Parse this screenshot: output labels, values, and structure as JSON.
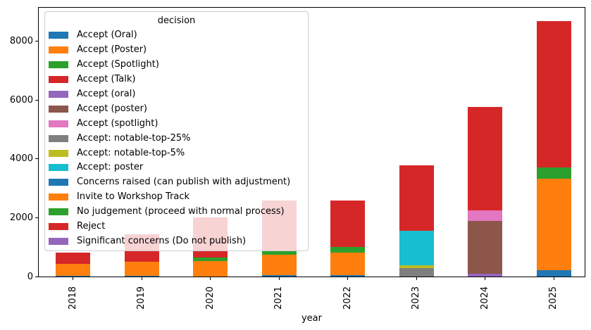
{
  "axes": {
    "xlabel": "year",
    "y_tick_labels": [
      "0",
      "2000",
      "4000",
      "6000",
      "8000"
    ],
    "x_tick_labels": [
      "2018",
      "2019",
      "2020",
      "2021",
      "2022",
      "2023",
      "2024",
      "2025"
    ]
  },
  "legend": {
    "title": "decision"
  },
  "chart_data": {
    "type": "bar",
    "stacked": true,
    "title": "",
    "xlabel": "year",
    "ylabel": "",
    "categories": [
      "2018",
      "2019",
      "2020",
      "2021",
      "2022",
      "2023",
      "2024",
      "2025"
    ],
    "yticks": [
      0,
      2000,
      4000,
      6000,
      8000
    ],
    "ylim": [
      0,
      9140
    ],
    "grid": false,
    "legend_title": "decision",
    "legend_position": "upper left",
    "legend_semi_transparent": true,
    "series": [
      {
        "name": "Accept (Oral)",
        "color": "#1f77b4",
        "values": [
          23,
          24,
          0,
          53,
          54,
          0,
          0,
          213
        ]
      },
      {
        "name": "Accept (Poster)",
        "color": "#ff7f0e",
        "values": [
          314,
          478,
          532,
          693,
          766,
          0,
          0,
          3115
        ]
      },
      {
        "name": "Accept (Spotlight)",
        "color": "#2ca02c",
        "values": [
          0,
          0,
          107,
          114,
          176,
          0,
          0,
          382
        ]
      },
      {
        "name": "Accept (Talk)",
        "color": "#d62728",
        "values": [
          0,
          0,
          48,
          0,
          0,
          0,
          0,
          0
        ]
      },
      {
        "name": "Accept (oral)",
        "color": "#9467bd",
        "values": [
          0,
          0,
          0,
          0,
          0,
          0,
          86,
          0
        ]
      },
      {
        "name": "Accept (poster)",
        "color": "#8c564b",
        "values": [
          0,
          0,
          0,
          0,
          0,
          0,
          1809,
          0
        ]
      },
      {
        "name": "Accept (spotlight)",
        "color": "#e377c2",
        "values": [
          0,
          0,
          0,
          0,
          0,
          0,
          366,
          0
        ]
      },
      {
        "name": "Accept: notable-top-25%",
        "color": "#7f7f7f",
        "values": [
          0,
          0,
          0,
          0,
          0,
          281,
          0,
          0
        ]
      },
      {
        "name": "Accept: notable-top-5%",
        "color": "#bcbd22",
        "values": [
          0,
          0,
          0,
          0,
          0,
          91,
          0,
          0
        ]
      },
      {
        "name": "Accept: poster",
        "color": "#17becf",
        "values": [
          0,
          0,
          0,
          0,
          0,
          1184,
          0,
          0
        ]
      },
      {
        "name": "Concerns raised (can publish with adjustment)",
        "color": "#1f77b4",
        "values": [
          0,
          0,
          0,
          0,
          0,
          0,
          0,
          0
        ]
      },
      {
        "name": "Invite to Workshop Track",
        "color": "#ff7f0e",
        "values": [
          90,
          0,
          0,
          0,
          0,
          0,
          0,
          0
        ]
      },
      {
        "name": "No judgement (proceed with normal process)",
        "color": "#2ca02c",
        "values": [
          0,
          0,
          0,
          0,
          0,
          0,
          0,
          0
        ]
      },
      {
        "name": "Reject",
        "color": "#d62728",
        "values": [
          380,
          926,
          1313,
          1716,
          1595,
          2233,
          3504,
          4983
        ]
      },
      {
        "name": "Significant concerns (Do not publish)",
        "color": "#9467bd",
        "values": [
          0,
          0,
          0,
          0,
          0,
          0,
          0,
          0
        ]
      }
    ],
    "totals": [
      807,
      1428,
      2000,
      2576,
      2591,
      3789,
      5765,
      8693
    ]
  }
}
